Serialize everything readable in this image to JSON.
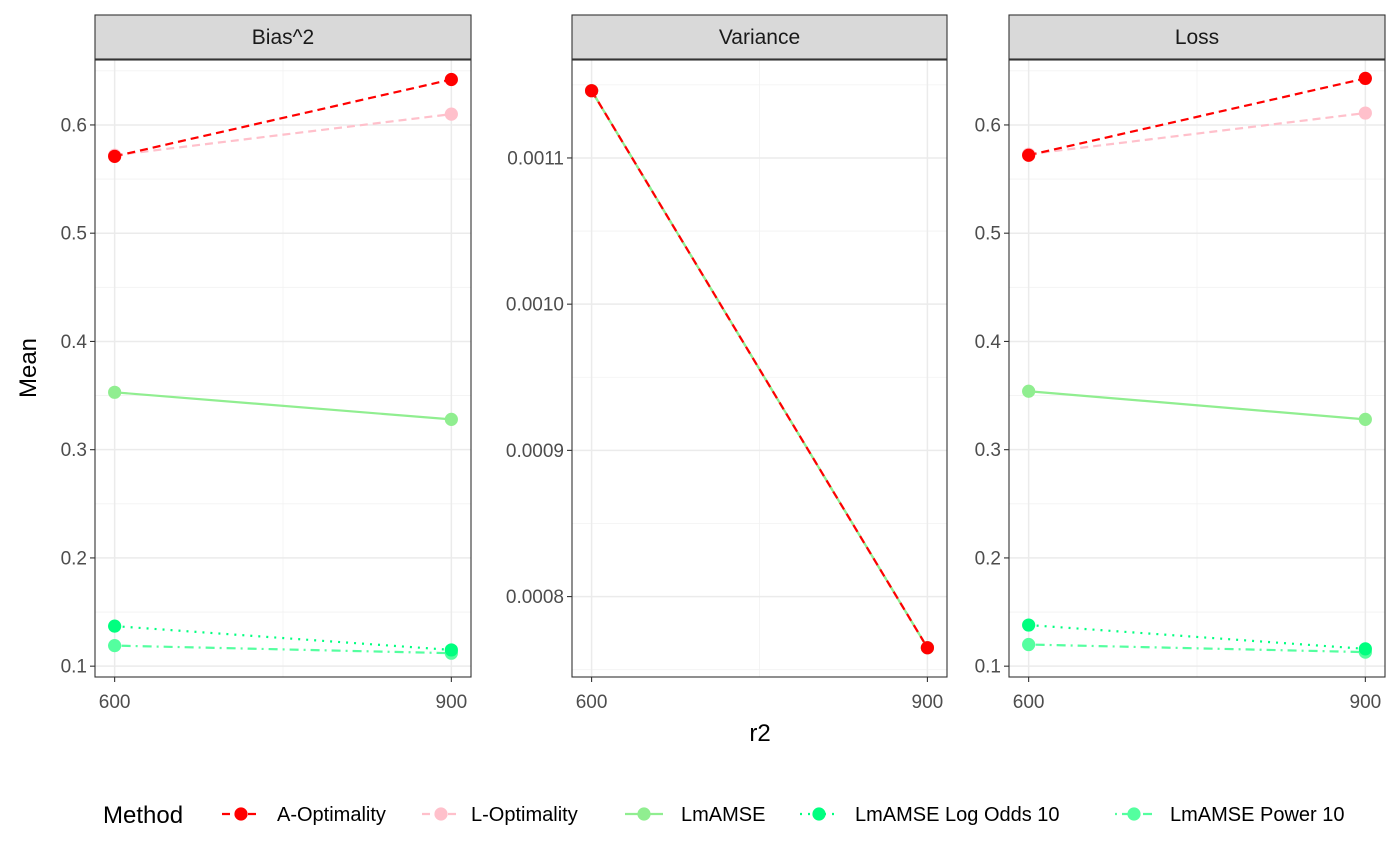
{
  "chart_data": {
    "type": "line",
    "facets": [
      "Bias^2",
      "Variance",
      "Loss"
    ],
    "x": [
      600,
      900
    ],
    "xlabel": "r2",
    "ylabel": "Mean",
    "x_ticks": [
      "600",
      "900"
    ],
    "panels": [
      {
        "title": "Bias^2",
        "ylim": [
          0.09,
          0.66
        ],
        "y_ticks": [
          0.1,
          0.2,
          0.3,
          0.4,
          0.5,
          0.6
        ],
        "y_tick_labels": [
          "0.1",
          "0.2",
          "0.3",
          "0.4",
          "0.5",
          "0.6"
        ],
        "series": [
          {
            "name": "A-Optimality",
            "values": [
              0.571,
              0.642
            ]
          },
          {
            "name": "L-Optimality",
            "values": [
              0.572,
              0.61
            ]
          },
          {
            "name": "LmAMSE",
            "values": [
              0.353,
              0.328
            ]
          },
          {
            "name": "LmAMSE Log Odds 10",
            "values": [
              0.137,
              0.115
            ]
          },
          {
            "name": "LmAMSE Power 10",
            "values": [
              0.119,
              0.112
            ]
          }
        ]
      },
      {
        "title": "Variance",
        "ylim": [
          0.000745,
          0.001167
        ],
        "y_ticks": [
          0.0008,
          0.0009,
          0.001,
          0.0011
        ],
        "y_tick_labels": [
          "0.0008",
          "0.0009",
          "0.0010",
          "0.0011"
        ],
        "series": [
          {
            "name": "A-Optimality",
            "values": [
              0.001146,
              0.000765
            ]
          },
          {
            "name": "L-Optimality",
            "values": [
              0.001146,
              0.000765
            ]
          },
          {
            "name": "LmAMSE",
            "values": [
              0.001146,
              0.000765
            ]
          },
          {
            "name": "LmAMSE Log Odds 10",
            "values": [
              0.001146,
              0.000765
            ]
          },
          {
            "name": "LmAMSE Power 10",
            "values": [
              0.001146,
              0.000765
            ]
          }
        ]
      },
      {
        "title": "Loss",
        "ylim": [
          0.09,
          0.66
        ],
        "y_ticks": [
          0.1,
          0.2,
          0.3,
          0.4,
          0.5,
          0.6
        ],
        "y_tick_labels": [
          "0.1",
          "0.2",
          "0.3",
          "0.4",
          "0.5",
          "0.6"
        ],
        "series": [
          {
            "name": "A-Optimality",
            "values": [
              0.572,
              0.643
            ]
          },
          {
            "name": "L-Optimality",
            "values": [
              0.573,
              0.611
            ]
          },
          {
            "name": "LmAMSE",
            "values": [
              0.354,
              0.328
            ]
          },
          {
            "name": "LmAMSE Log Odds 10",
            "values": [
              0.138,
              0.116
            ]
          },
          {
            "name": "LmAMSE Power 10",
            "values": [
              0.12,
              0.113
            ]
          }
        ]
      }
    ],
    "legend": {
      "title": "Method",
      "position": "bottom",
      "items": [
        {
          "name": "A-Optimality",
          "color": "#ff0000",
          "linetype": "dashed"
        },
        {
          "name": "L-Optimality",
          "color": "#ffc0cb",
          "linetype": "dashed"
        },
        {
          "name": "LmAMSE",
          "color": "#90ee90",
          "linetype": "solid"
        },
        {
          "name": "LmAMSE Log Odds 10",
          "color": "#00ff7f",
          "linetype": "dotted"
        },
        {
          "name": "LmAMSE Power 10",
          "color": "#54ff9f",
          "linetype": "dotdash"
        }
      ]
    },
    "grid": true,
    "theme": "bw"
  }
}
